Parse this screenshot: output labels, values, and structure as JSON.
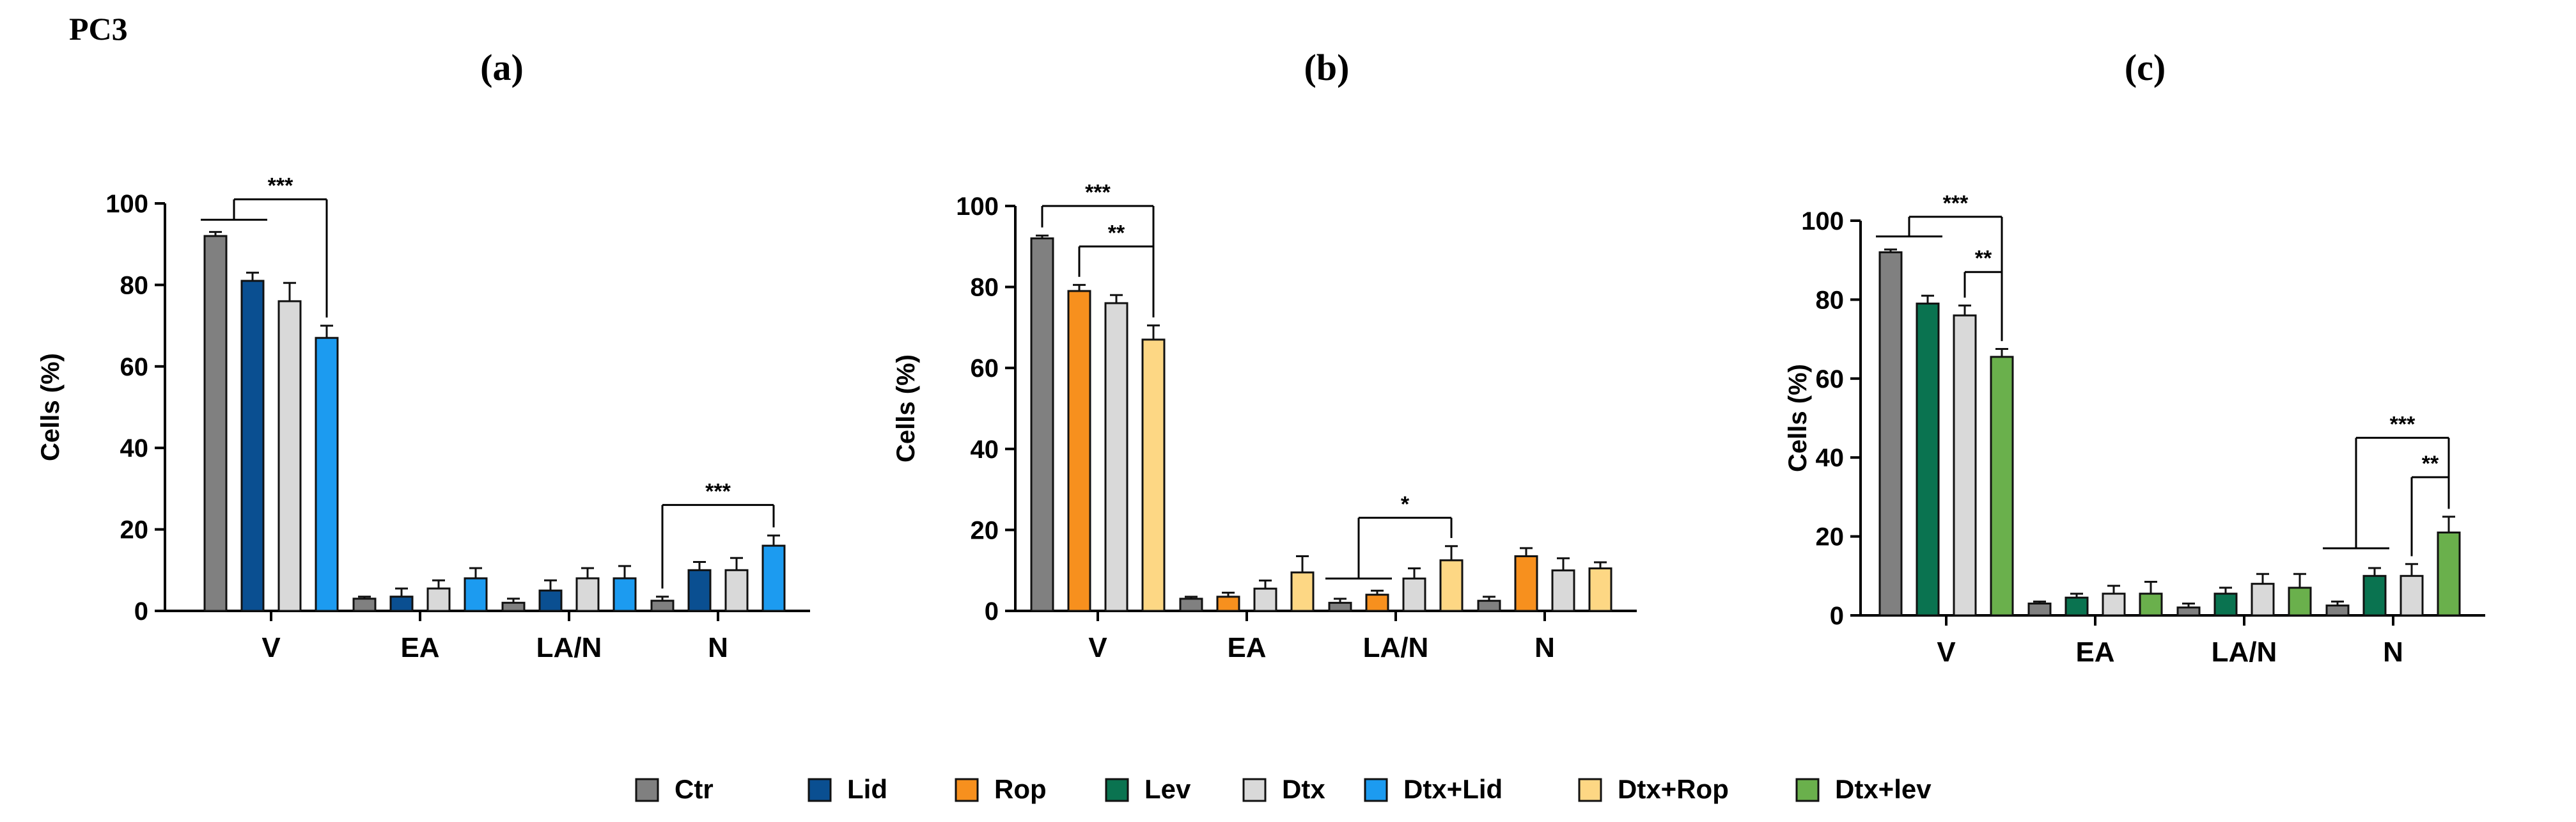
{
  "figure_title": "PC3",
  "colors": {
    "Ctr": "#808080",
    "Lid": "#0a4f91",
    "Rop": "#f7901e",
    "Lev": "#0a7350",
    "Dtx": "#d9d9d9",
    "Dtx+Lid": "#1c9bf0",
    "Dtx+Rop": "#fdd784",
    "Dtx+lev": "#6ab04c"
  },
  "legend": [
    "Ctr",
    "Lid",
    "Rop",
    "Lev",
    "Dtx",
    "Dtx+Lid",
    "Dtx+Rop",
    "Dtx+lev"
  ],
  "chart_data": [
    {
      "type": "bar",
      "panel_label": "(a)",
      "categories": [
        "V",
        "EA",
        "LA/N",
        "N"
      ],
      "ylabel": "Cells (%)",
      "ylim": [
        0,
        100
      ],
      "yticks": [
        "0",
        "20",
        "40",
        "60",
        "80",
        "100"
      ],
      "series": [
        {
          "name": "Ctr",
          "values": [
            92,
            3,
            2,
            2.5
          ],
          "errors": [
            1,
            0.5,
            1,
            1
          ]
        },
        {
          "name": "Lid",
          "values": [
            81,
            3.5,
            5,
            10
          ],
          "errors": [
            2,
            2,
            2.5,
            2
          ]
        },
        {
          "name": "Dtx",
          "values": [
            76,
            5.5,
            8,
            10
          ],
          "errors": [
            4.5,
            2,
            2.5,
            3
          ]
        },
        {
          "name": "Dtx+Lid",
          "values": [
            67,
            8,
            8,
            16
          ],
          "errors": [
            3,
            2.5,
            3,
            2.5
          ]
        }
      ],
      "annotations": [
        {
          "text": "***",
          "category": 0,
          "from": [
            0,
            1
          ],
          "to": 3,
          "y": 101,
          "line": 96
        },
        {
          "text": "***",
          "category": 3,
          "from": [
            0
          ],
          "to": 3,
          "y": 26
        }
      ]
    },
    {
      "type": "bar",
      "panel_label": "(b)",
      "categories": [
        "V",
        "EA",
        "LA/N",
        "N"
      ],
      "ylabel": "Cells (%)",
      "ylim": [
        0,
        100
      ],
      "yticks": [
        "0",
        "20",
        "40",
        "60",
        "80",
        "100"
      ],
      "series": [
        {
          "name": "Ctr",
          "values": [
            92,
            3,
            2,
            2.5
          ],
          "errors": [
            0.7,
            0.5,
            1,
            1
          ]
        },
        {
          "name": "Rop",
          "values": [
            79,
            3.5,
            4,
            13.5
          ],
          "errors": [
            1.5,
            1,
            1,
            2
          ]
        },
        {
          "name": "Dtx",
          "values": [
            76,
            5.5,
            8,
            10
          ],
          "errors": [
            2,
            2,
            2.5,
            3
          ]
        },
        {
          "name": "Dtx+Rop",
          "values": [
            67,
            9.5,
            12.5,
            10.5
          ],
          "errors": [
            3.5,
            4,
            3.5,
            1.5
          ]
        }
      ],
      "annotations": [
        {
          "text": "***",
          "category": 0,
          "from": [
            0
          ],
          "to": 3,
          "y": 100
        },
        {
          "text": "**",
          "category": 0,
          "from": [
            1
          ],
          "to": 3,
          "y": 90
        },
        {
          "text": "*",
          "category": 2,
          "from": [
            0,
            1
          ],
          "to": 3,
          "y": 23,
          "line": 8
        }
      ]
    },
    {
      "type": "bar",
      "panel_label": "(c)",
      "categories": [
        "V",
        "EA",
        "LA/N",
        "N"
      ],
      "ylabel": "Cells (%)",
      "ylim": [
        0,
        100
      ],
      "yticks": [
        "0",
        "20",
        "40",
        "60",
        "80",
        "100"
      ],
      "series": [
        {
          "name": "Ctr",
          "values": [
            92,
            3,
            2,
            2.5
          ],
          "errors": [
            0.7,
            0.5,
            1,
            1
          ]
        },
        {
          "name": "Lev",
          "values": [
            79,
            4.5,
            5.5,
            10
          ],
          "errors": [
            2,
            1,
            1.5,
            2
          ]
        },
        {
          "name": "Dtx",
          "values": [
            76,
            5.5,
            8,
            10
          ],
          "errors": [
            2.5,
            2,
            2.5,
            3
          ]
        },
        {
          "name": "Dtx+lev",
          "values": [
            65.5,
            5.5,
            7,
            21
          ],
          "errors": [
            2,
            3,
            3.5,
            4
          ]
        }
      ],
      "annotations": [
        {
          "text": "***",
          "category": 0,
          "from": [
            0,
            1
          ],
          "to": 3,
          "y": 101,
          "line": 96
        },
        {
          "text": "**",
          "category": 0,
          "from": [
            2
          ],
          "to": 3,
          "y": 87
        },
        {
          "text": "***",
          "category": 3,
          "from": [
            0,
            1
          ],
          "to": 3,
          "y": 45,
          "line": 17
        },
        {
          "text": "**",
          "category": 3,
          "from": [
            2
          ],
          "to": 3,
          "y": 35
        }
      ]
    }
  ]
}
